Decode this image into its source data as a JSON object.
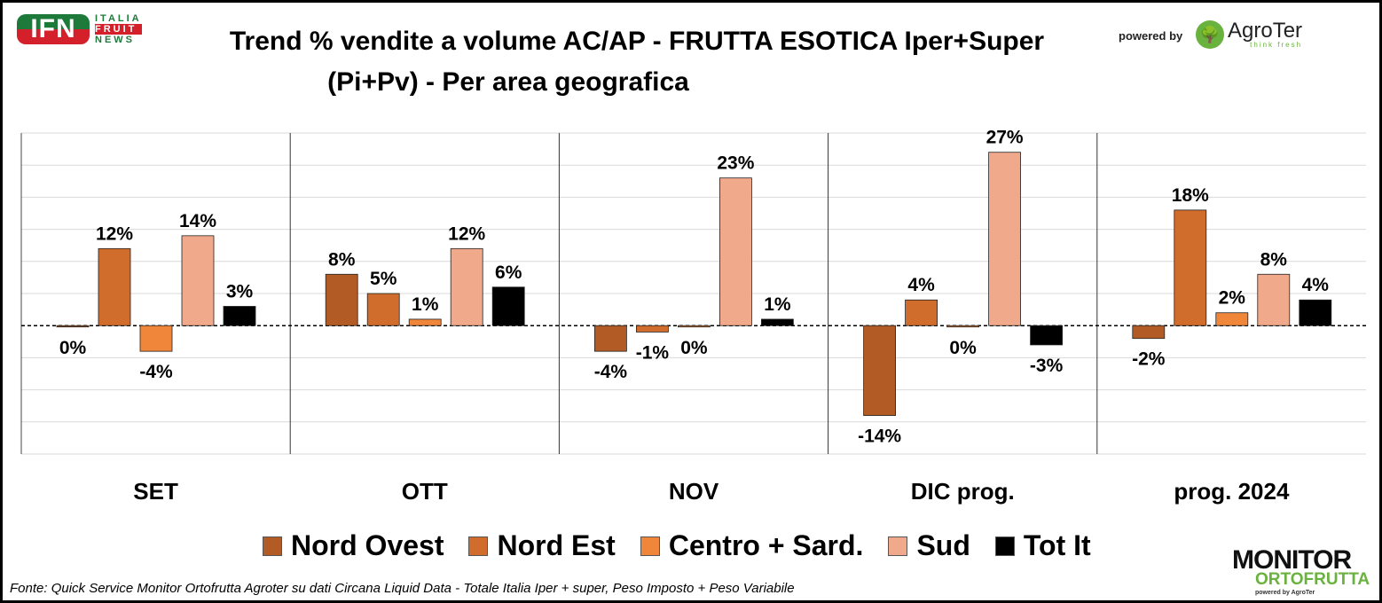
{
  "header": {
    "title_line1": "Trend % vendite a volume AC/AP - FRUTTA ESOTICA  Iper+Super",
    "title_line2": "(Pi+Pv) - Per area geografica",
    "ifn_logo": "IFN",
    "ifn_words": [
      "ITALIA",
      "FRUIT",
      "NEWS"
    ],
    "powered_by": "powered by",
    "agroter": "AgroTer",
    "agroter_tag": "think fresh"
  },
  "footer": {
    "source": "Fonte: Quick Service Monitor Ortofrutta Agroter su dati Circana Liquid Data - Totale Italia Iper + super, Peso Imposto + Peso Variabile",
    "monitor_line1": "MONITOR",
    "monitor_line2": "ORTOFRUTTA",
    "monitor_line3": "powered by AgroTer"
  },
  "chart_data": {
    "type": "bar",
    "title": "Trend % vendite a volume AC/AP - FRUTTA ESOTICA Iper+Super (Pi+Pv) - Per area geografica",
    "categories": [
      "SET",
      "OTT",
      "NOV",
      "DIC prog.",
      "prog. 2024"
    ],
    "series": [
      {
        "name": "Nord Ovest",
        "color": "#b35b25",
        "values": [
          0,
          8,
          -4,
          -14,
          -2
        ]
      },
      {
        "name": "Nord Est",
        "color": "#d06c2c",
        "values": [
          12,
          5,
          -1,
          4,
          18
        ]
      },
      {
        "name": "Centro + Sard.",
        "color": "#ef8639",
        "values": [
          -4,
          1,
          0,
          0,
          2
        ]
      },
      {
        "name": "Sud",
        "color": "#f1a98c",
        "values": [
          14,
          12,
          23,
          27,
          8
        ]
      },
      {
        "name": "Tot It",
        "color": "#000000",
        "values": [
          3,
          6,
          1,
          -3,
          4
        ]
      }
    ],
    "ylim": [
      -20,
      30
    ],
    "ytick_step": 5,
    "grid": true,
    "legend": "bottom",
    "unit": "%"
  }
}
